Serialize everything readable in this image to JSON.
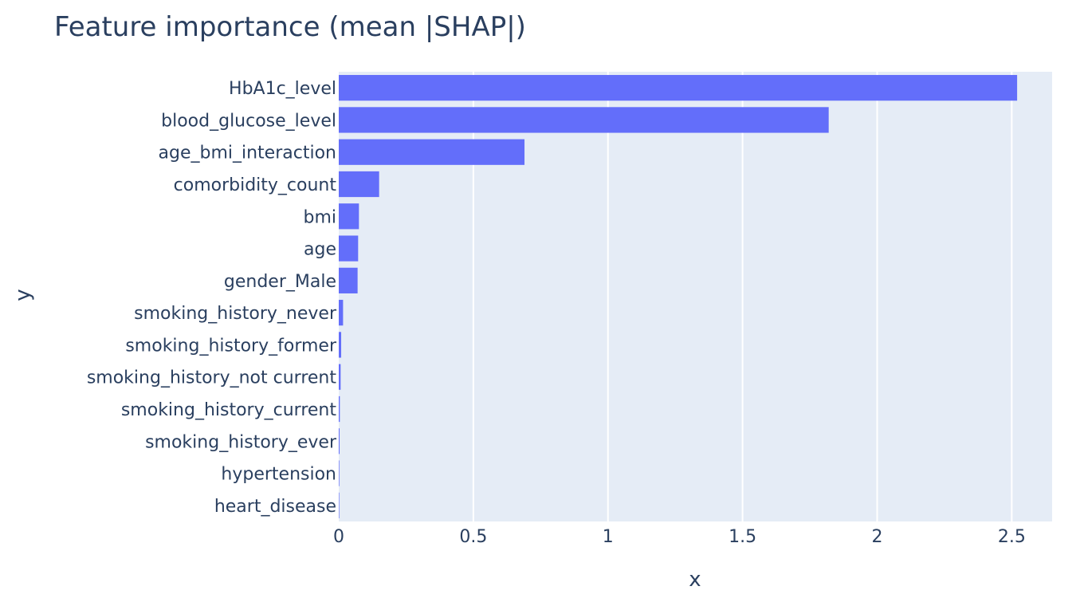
{
  "chart_data": {
    "type": "bar",
    "orientation": "horizontal",
    "title": "Feature importance (mean |SHAP|)",
    "xlabel": "x",
    "ylabel": "y",
    "xlim": [
      0,
      2.65
    ],
    "xticks": [
      0,
      0.5,
      1,
      1.5,
      2,
      2.5
    ],
    "xtick_labels": [
      "0",
      "0.5",
      "1",
      "1.5",
      "2",
      "2.5"
    ],
    "grid": true,
    "legend": false,
    "categories": [
      "HbA1c_level",
      "blood_glucose_level",
      "age_bmi_interaction",
      "comorbidity_count",
      "bmi",
      "age",
      "gender_Male",
      "smoking_history_never",
      "smoking_history_former",
      "smoking_history_not current",
      "smoking_history_current",
      "smoking_history_ever",
      "hypertension",
      "heart_disease"
    ],
    "values": [
      2.52,
      1.82,
      0.69,
      0.15,
      0.075,
      0.072,
      0.07,
      0.016,
      0.009,
      0.007,
      0.004,
      0.003,
      0.002,
      0.001
    ],
    "colors": {
      "bar": "#636efa",
      "plot_bg": "#e5ecf6",
      "grid": "#ffffff",
      "text": "#2a3f5f"
    }
  }
}
